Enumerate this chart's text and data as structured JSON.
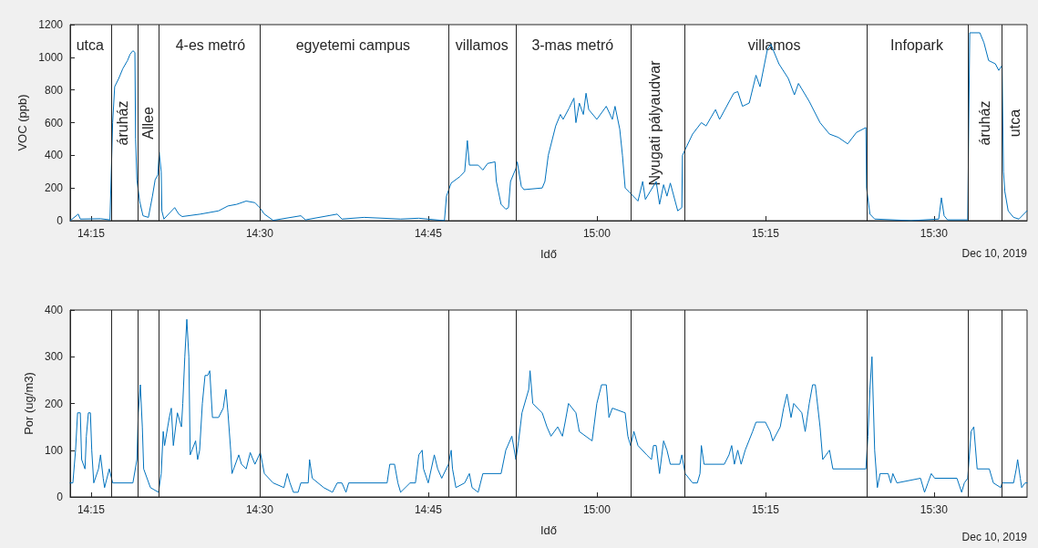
{
  "chart_data": [
    {
      "type": "line",
      "ylabel": "VOC (ppb)",
      "xlabel": "Idő",
      "marker": "none",
      "line_style": "solid",
      "grid": false,
      "xlim": [
        14.219,
        15.638
      ],
      "ylim": [
        0,
        1200
      ],
      "yticks": [
        0,
        200,
        400,
        600,
        800,
        1000,
        1200
      ],
      "xticks": [
        {
          "value": 14.25,
          "label": "14:15"
        },
        {
          "value": 14.5,
          "label": "14:30"
        },
        {
          "value": 14.75,
          "label": "14:45"
        },
        {
          "value": 15,
          "label": "15:00"
        },
        {
          "value": 15.25,
          "label": "15:15"
        },
        {
          "value": 15.5,
          "label": "15:30"
        }
      ],
      "x": [
        14.219,
        14.231,
        14.234,
        14.264,
        14.278,
        14.282,
        14.285,
        14.291,
        14.297,
        14.304,
        14.308,
        14.312,
        14.315,
        14.316,
        14.318,
        14.322,
        14.327,
        14.335,
        14.341,
        14.345,
        14.349,
        14.351,
        14.354,
        14.355,
        14.358,
        14.374,
        14.38,
        14.385,
        14.412,
        14.439,
        14.453,
        14.466,
        14.48,
        14.493,
        14.5,
        14.507,
        14.52,
        14.561,
        14.568,
        14.615,
        14.622,
        14.655,
        14.709,
        14.736,
        14.774,
        14.777,
        14.784,
        14.797,
        14.804,
        14.808,
        14.811,
        14.824,
        14.831,
        14.838,
        14.849,
        14.851,
        14.858,
        14.865,
        14.869,
        14.872,
        14.88,
        14.882,
        14.888,
        14.892,
        14.919,
        14.923,
        14.928,
        14.939,
        14.946,
        14.95,
        14.959,
        14.966,
        14.969,
        14.974,
        14.98,
        14.984,
        14.988,
        15.0,
        15.014,
        15.023,
        15.027,
        15.034,
        15.038,
        15.042,
        15.054,
        15.061,
        15.068,
        15.072,
        15.088,
        15.093,
        15.099,
        15.104,
        15.109,
        15.12,
        15.126,
        15.127,
        15.142,
        15.155,
        15.162,
        15.176,
        15.182,
        15.203,
        15.209,
        15.216,
        15.226,
        15.236,
        15.242,
        15.253,
        15.258,
        15.27,
        15.284,
        15.293,
        15.299,
        15.315,
        15.331,
        15.345,
        15.358,
        15.372,
        15.385,
        15.399,
        15.4,
        15.405,
        15.412,
        15.466,
        15.507,
        15.511,
        15.515,
        15.52,
        15.55,
        15.553,
        15.568,
        15.574,
        15.581,
        15.591,
        15.596,
        15.601,
        15.603,
        15.605,
        15.61,
        15.618,
        15.626,
        15.638
      ],
      "series": [
        {
          "type": "line",
          "color": "#0072bd",
          "values": [
            0,
            40,
            10,
            12,
            5,
            600,
            820,
            870,
            930,
            980,
            1020,
            1040,
            1030,
            500,
            250,
            120,
            30,
            20,
            150,
            250,
            280,
            420,
            300,
            60,
            10,
            80,
            40,
            25,
            40,
            60,
            90,
            100,
            120,
            110,
            80,
            40,
            2,
            30,
            5,
            40,
            10,
            20,
            10,
            15,
            0,
            150,
            230,
            270,
            300,
            490,
            340,
            340,
            310,
            350,
            360,
            240,
            100,
            70,
            80,
            240,
            320,
            360,
            210,
            190,
            200,
            240,
            400,
            580,
            650,
            620,
            690,
            750,
            600,
            720,
            650,
            780,
            680,
            620,
            700,
            620,
            700,
            560,
            400,
            200,
            150,
            120,
            240,
            130,
            240,
            100,
            220,
            150,
            230,
            60,
            80,
            400,
            530,
            600,
            580,
            680,
            620,
            780,
            790,
            700,
            720,
            890,
            820,
            1050,
            1080,
            960,
            870,
            770,
            840,
            730,
            600,
            530,
            510,
            470,
            540,
            570,
            200,
            40,
            10,
            0,
            10,
            140,
            30,
            5,
            5,
            1150,
            1150,
            1090,
            980,
            960,
            920,
            950,
            300,
            180,
            60,
            20,
            10,
            60
          ]
        }
      ],
      "ref_lines": [
        {
          "axis": "x",
          "value": 14.278,
          "color": "#262626"
        },
        {
          "axis": "x",
          "value": 14.316,
          "color": "#262626"
        },
        {
          "axis": "x",
          "value": 14.354,
          "color": "#262626"
        },
        {
          "axis": "x",
          "value": 14.5,
          "color": "#262626"
        },
        {
          "axis": "x",
          "value": 14.777,
          "color": "#262626"
        },
        {
          "axis": "x",
          "value": 14.882,
          "color": "#262626"
        },
        {
          "axis": "x",
          "value": 15.046,
          "color": "#262626"
        },
        {
          "axis": "x",
          "value": 15.127,
          "color": "#262626"
        },
        {
          "axis": "x",
          "value": 15.399,
          "color": "#262626"
        },
        {
          "axis": "x",
          "value": 15.55,
          "color": "#262626"
        },
        {
          "axis": "x",
          "value": 15.601,
          "color": "#262626"
        }
      ],
      "annotations": [
        "utca",
        "áruház",
        "Allee",
        "4-es metró",
        "egyetemi campus",
        "villamos",
        "3-mas metró",
        "Nyugati pályaudvar",
        "villamos",
        "Infopark",
        "áruház",
        "utca",
        "Dec 10, 2019"
      ]
    },
    {
      "type": "line",
      "ylabel": "Por (ug/m3)",
      "xlabel": "Idő",
      "marker": "none",
      "line_style": "solid",
      "grid": false,
      "xlim": [
        14.219,
        15.638
      ],
      "ylim": [
        0,
        400
      ],
      "yticks": [
        0,
        100,
        200,
        300,
        400
      ],
      "xticks": [
        {
          "value": 14.25,
          "label": "14:15"
        },
        {
          "value": 14.5,
          "label": "14:30"
        },
        {
          "value": 14.75,
          "label": "14:45"
        },
        {
          "value": 15,
          "label": "15:00"
        },
        {
          "value": 15.25,
          "label": "15:15"
        },
        {
          "value": 15.5,
          "label": "15:30"
        }
      ],
      "x": [
        14.219,
        14.223,
        14.227,
        14.23,
        14.234,
        14.236,
        14.241,
        14.243,
        14.246,
        14.249,
        14.251,
        14.254,
        14.261,
        14.264,
        14.268,
        14.27,
        14.277,
        14.282,
        14.312,
        14.318,
        14.32,
        14.323,
        14.326,
        14.328,
        14.338,
        14.35,
        14.354,
        14.357,
        14.359,
        14.366,
        14.369,
        14.372,
        14.378,
        14.384,
        14.386,
        14.389,
        14.392,
        14.395,
        14.397,
        14.405,
        14.408,
        14.411,
        14.415,
        14.419,
        14.423,
        14.426,
        14.43,
        14.439,
        14.446,
        14.45,
        14.453,
        14.457,
        14.459,
        14.469,
        14.473,
        14.48,
        14.486,
        14.493,
        14.501,
        14.507,
        14.52,
        14.536,
        14.541,
        14.545,
        14.55,
        14.557,
        14.561,
        14.572,
        14.574,
        14.578,
        14.595,
        14.608,
        14.615,
        14.622,
        14.628,
        14.632,
        14.689,
        14.693,
        14.7,
        14.705,
        14.709,
        14.723,
        14.731,
        14.736,
        14.741,
        14.743,
        14.75,
        14.759,
        14.764,
        14.77,
        14.78,
        14.784,
        14.786,
        14.791,
        14.804,
        14.811,
        14.815,
        14.824,
        14.831,
        14.858,
        14.865,
        14.874,
        14.88,
        14.884,
        14.889,
        14.899,
        14.901,
        14.905,
        14.919,
        14.926,
        14.932,
        14.942,
        14.949,
        14.953,
        14.958,
        14.969,
        14.974,
        14.993,
        15.0,
        15.007,
        15.014,
        15.018,
        15.023,
        15.042,
        15.046,
        15.05,
        15.055,
        15.061,
        15.074,
        15.081,
        15.084,
        15.088,
        15.093,
        15.099,
        15.104,
        15.109,
        15.123,
        15.126,
        15.131,
        15.142,
        15.149,
        15.153,
        15.155,
        15.159,
        15.189,
        15.196,
        15.2,
        15.204,
        15.209,
        15.214,
        15.22,
        15.231,
        15.236,
        15.25,
        15.257,
        15.261,
        15.272,
        15.277,
        15.282,
        15.288,
        15.292,
        15.304,
        15.309,
        15.315,
        15.32,
        15.324,
        15.331,
        15.335,
        15.345,
        15.35,
        15.399,
        15.402,
        15.405,
        15.408,
        15.412,
        15.416,
        15.42,
        15.432,
        15.436,
        15.439,
        15.445,
        15.48,
        15.486,
        15.491,
        15.496,
        15.501,
        15.534,
        15.541,
        15.545,
        15.55,
        15.555,
        15.559,
        15.564,
        15.582,
        15.588,
        15.599,
        15.601,
        15.618,
        15.622,
        15.624,
        15.628,
        15.63,
        15.635,
        15.638
      ],
      "series": [
        {
          "type": "line",
          "color": "#0072bd",
          "values": [
            30,
            30,
            100,
            180,
            180,
            80,
            60,
            130,
            180,
            180,
            100,
            30,
            60,
            90,
            40,
            20,
            60,
            30,
            30,
            80,
            180,
            240,
            150,
            60,
            20,
            10,
            50,
            140,
            110,
            170,
            190,
            110,
            180,
            150,
            200,
            300,
            380,
            300,
            90,
            120,
            80,
            100,
            200,
            260,
            260,
            270,
            170,
            170,
            190,
            230,
            180,
            100,
            50,
            90,
            70,
            60,
            95,
            70,
            95,
            50,
            30,
            20,
            50,
            30,
            10,
            10,
            30,
            30,
            80,
            40,
            20,
            10,
            30,
            30,
            10,
            30,
            30,
            70,
            70,
            30,
            10,
            30,
            30,
            90,
            100,
            60,
            30,
            90,
            60,
            40,
            70,
            100,
            60,
            20,
            30,
            50,
            20,
            10,
            50,
            50,
            100,
            130,
            80,
            120,
            180,
            230,
            270,
            200,
            180,
            150,
            130,
            150,
            130,
            160,
            200,
            180,
            140,
            120,
            200,
            240,
            240,
            170,
            190,
            180,
            130,
            110,
            140,
            110,
            90,
            80,
            110,
            110,
            50,
            120,
            100,
            70,
            70,
            90,
            50,
            30,
            30,
            50,
            110,
            70,
            70,
            90,
            110,
            70,
            100,
            70,
            100,
            140,
            160,
            160,
            140,
            120,
            150,
            190,
            220,
            170,
            200,
            180,
            140,
            200,
            240,
            240,
            150,
            80,
            100,
            60,
            60,
            130,
            230,
            300,
            100,
            20,
            50,
            50,
            30,
            50,
            30,
            40,
            10,
            30,
            50,
            40,
            40,
            10,
            30,
            40,
            140,
            150,
            60,
            60,
            30,
            20,
            30,
            30,
            60,
            80,
            40,
            20,
            30,
            30
          ]
        }
      ],
      "ref_lines": [
        {
          "axis": "x",
          "value": 14.278,
          "color": "#262626"
        },
        {
          "axis": "x",
          "value": 14.316,
          "color": "#262626"
        },
        {
          "axis": "x",
          "value": 14.354,
          "color": "#262626"
        },
        {
          "axis": "x",
          "value": 14.5,
          "color": "#262626"
        },
        {
          "axis": "x",
          "value": 14.777,
          "color": "#262626"
        },
        {
          "axis": "x",
          "value": 14.882,
          "color": "#262626"
        },
        {
          "axis": "x",
          "value": 15.046,
          "color": "#262626"
        },
        {
          "axis": "x",
          "value": 15.127,
          "color": "#262626"
        },
        {
          "axis": "x",
          "value": 15.399,
          "color": "#262626"
        },
        {
          "axis": "x",
          "value": 15.55,
          "color": "#262626"
        },
        {
          "axis": "x",
          "value": 15.601,
          "color": "#262626"
        }
      ],
      "annotations": [
        "Dec 10, 2019"
      ]
    }
  ]
}
